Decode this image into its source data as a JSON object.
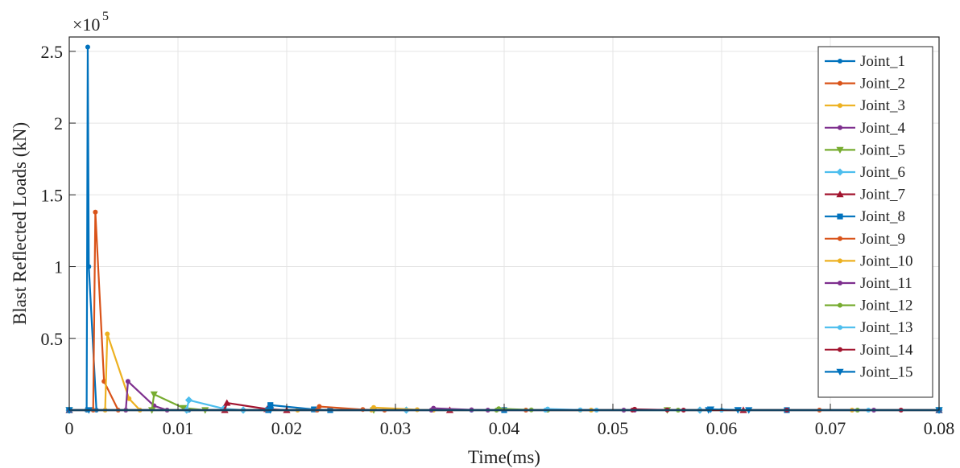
{
  "chart_data": {
    "type": "line",
    "xlabel": "Time(ms)",
    "ylabel": "Blast Reflected Loads (kN)",
    "y_multiplier_label": "×10",
    "y_multiplier_exponent": "5",
    "xlim": [
      0,
      0.08
    ],
    "ylim": [
      0,
      260000
    ],
    "x_ticks": [
      "0",
      "0.01",
      "0.02",
      "0.03",
      "0.04",
      "0.05",
      "0.06",
      "0.07",
      "0.08"
    ],
    "y_ticks": [
      {
        "value": 50000,
        "label": "0.5"
      },
      {
        "value": 100000,
        "label": "1"
      },
      {
        "value": 150000,
        "label": "1.5"
      },
      {
        "value": 200000,
        "label": "2"
      },
      {
        "value": 250000,
        "label": "2.5"
      }
    ],
    "grid": true,
    "legend_position": "top-right",
    "series": [
      {
        "name": "Joint_1",
        "color": "#0072bd",
        "marker": "dot",
        "x": [
          0,
          0.0016,
          0.0017,
          0.0018,
          0.0025,
          0.011,
          0.037,
          0.08
        ],
        "y": [
          0,
          0,
          253000,
          100000,
          0,
          0,
          0,
          0
        ]
      },
      {
        "name": "Joint_2",
        "color": "#d95319",
        "marker": "dot",
        "x": [
          0,
          0.0022,
          0.0024,
          0.0032,
          0.0045,
          0.016,
          0.042,
          0.08
        ],
        "y": [
          0,
          0,
          138000,
          20000,
          0,
          0,
          0,
          0
        ]
      },
      {
        "name": "Joint_3",
        "color": "#edb120",
        "marker": "dot",
        "x": [
          0,
          0.0033,
          0.0035,
          0.0055,
          0.0065,
          0.021,
          0.047,
          0.08
        ],
        "y": [
          0,
          0,
          53000,
          8000,
          0,
          0,
          0,
          0
        ]
      },
      {
        "name": "Joint_4",
        "color": "#7e2f8e",
        "marker": "dot",
        "x": [
          0,
          0.0052,
          0.0054,
          0.0078,
          0.009,
          0.024,
          0.051,
          0.08
        ],
        "y": [
          0,
          0,
          20000,
          3000,
          0,
          0,
          0,
          0
        ]
      },
      {
        "name": "Joint_5",
        "color": "#77ac30",
        "marker": "triangle-down",
        "x": [
          0,
          0.0076,
          0.0078,
          0.0105,
          0.0125,
          0.028,
          0.055,
          0.08
        ],
        "y": [
          0,
          0,
          11000,
          1500,
          0,
          0,
          0,
          0
        ]
      },
      {
        "name": "Joint_6",
        "color": "#4dbeee",
        "marker": "diamond",
        "x": [
          0,
          0.0108,
          0.011,
          0.0142,
          0.016,
          0.031,
          0.058,
          0.08
        ],
        "y": [
          0,
          0,
          7000,
          1000,
          0,
          0,
          0,
          0
        ]
      },
      {
        "name": "Joint_7",
        "color": "#a2142f",
        "marker": "triangle",
        "x": [
          0,
          0.0143,
          0.0145,
          0.0182,
          0.02,
          0.035,
          0.062,
          0.08
        ],
        "y": [
          0,
          0,
          5000,
          700,
          0,
          0,
          0,
          0
        ]
      },
      {
        "name": "Joint_8",
        "color": "#0072bd",
        "marker": "square",
        "x": [
          0,
          0.0183,
          0.0185,
          0.0225,
          0.024,
          0.04,
          0.066,
          0.08
        ],
        "y": [
          0,
          0,
          3500,
          500,
          0,
          0,
          0,
          0
        ]
      },
      {
        "name": "Joint_9",
        "color": "#d95319",
        "marker": "dot",
        "x": [
          0,
          0.0228,
          0.023,
          0.027,
          0.029,
          0.044,
          0.069,
          0.08
        ],
        "y": [
          0,
          0,
          2500,
          400,
          0,
          0,
          0,
          0
        ]
      },
      {
        "name": "Joint_10",
        "color": "#edb120",
        "marker": "dot",
        "x": [
          0,
          0.0278,
          0.028,
          0.032,
          0.0335,
          0.048,
          0.072,
          0.08
        ],
        "y": [
          0,
          0,
          1800,
          300,
          0,
          0,
          0,
          0
        ]
      },
      {
        "name": "Joint_11",
        "color": "#7e2f8e",
        "marker": "dot",
        "x": [
          0,
          0.0333,
          0.0335,
          0.037,
          0.0385,
          0.052,
          0.074,
          0.08
        ],
        "y": [
          0,
          0,
          1300,
          200,
          0,
          0,
          0,
          0
        ]
      },
      {
        "name": "Joint_12",
        "color": "#77ac30",
        "marker": "dot",
        "x": [
          0,
          0.0393,
          0.0395,
          0.0425,
          0.044,
          0.056,
          0.0725,
          0.08
        ],
        "y": [
          0,
          0,
          1000,
          150,
          0,
          0,
          0,
          0
        ]
      },
      {
        "name": "Joint_13",
        "color": "#4dbeee",
        "marker": "dot",
        "x": [
          0,
          0.0438,
          0.044,
          0.047,
          0.0485,
          0.06,
          0.0735,
          0.08
        ],
        "y": [
          0,
          0,
          800,
          120,
          0,
          0,
          0,
          0
        ]
      },
      {
        "name": "Joint_14",
        "color": "#a2142f",
        "marker": "dot",
        "x": [
          0,
          0.0518,
          0.052,
          0.055,
          0.0565,
          0.066,
          0.0765,
          0.08
        ],
        "y": [
          0,
          0,
          600,
          100,
          0,
          0,
          0,
          0
        ]
      },
      {
        "name": "Joint_15",
        "color": "#0072bd",
        "marker": "triangle-down",
        "x": [
          0,
          0.0018,
          0.0185,
          0.0588,
          0.059,
          0.0615,
          0.0625,
          0.08
        ],
        "y": [
          0,
          0,
          0,
          0,
          500,
          80,
          0,
          0
        ]
      }
    ]
  }
}
